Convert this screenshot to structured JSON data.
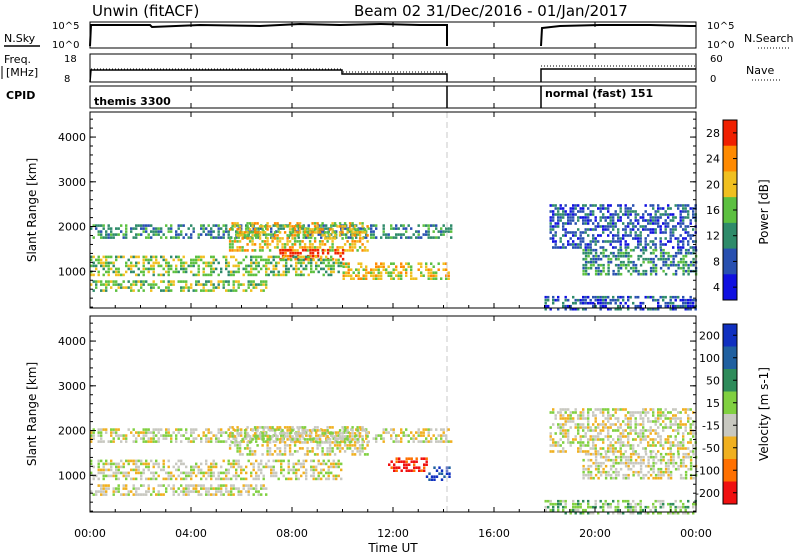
{
  "header": {
    "station": "Unwin (fitACF)",
    "beam_date": "Beam 02  31/Dec/2016 - 01/Jan/2017"
  },
  "strips": {
    "nsky_label": "N.Sky",
    "nsky_ticks": [
      "10^5",
      "10^0"
    ],
    "nsearch_label": "N.Search",
    "nsearch_ticks": [
      "10^5",
      "10^0"
    ],
    "freq_label": "Freq.",
    "freq_unit": "[MHz]",
    "freq_ticks": [
      "18",
      "8"
    ],
    "nave_label": "Nave",
    "nave_ticks": [
      "60",
      "0"
    ],
    "cpid_label": "CPID",
    "cpid_segments": [
      "themis 3300",
      "normal (fast) 151"
    ]
  },
  "x_axis": {
    "label": "Time UT",
    "ticks": [
      "00:00",
      "04:00",
      "08:00",
      "12:00",
      "16:00",
      "20:00",
      "00:00"
    ]
  },
  "chart_data": [
    {
      "type": "heatmap",
      "panel": "power",
      "ylabel": "Slant Range [km]",
      "yticks": [
        "1000",
        "2000",
        "3000",
        "4000"
      ],
      "ylim": [
        180,
        4560
      ],
      "xlim_hours": [
        0,
        24
      ],
      "colorbar_label": "Power [dB]",
      "colorbar_ticks": [
        "4",
        "8",
        "12",
        "16",
        "20",
        "24",
        "28"
      ],
      "colors": [
        "#1010e0",
        "#2850b0",
        "#2e8b6a",
        "#5cc040",
        "#f0c020",
        "#ff8a00",
        "#f02000"
      ],
      "coverage_hours": [
        [
          0,
          14.3
        ],
        [
          18,
          24
        ]
      ],
      "echo_bands": [
        {
          "t": [
            0.0,
            14.3
          ],
          "range_km": [
            1750,
            2050
          ],
          "level": 2
        },
        {
          "t": [
            5.5,
            11.0
          ],
          "range_km": [
            1450,
            2100
          ],
          "level": 4
        },
        {
          "t": [
            7.5,
            10.0
          ],
          "range_km": [
            1250,
            1500
          ],
          "level": 6
        },
        {
          "t": [
            0.0,
            10.0
          ],
          "range_km": [
            900,
            1350
          ],
          "level": 3
        },
        {
          "t": [
            0.0,
            7.0
          ],
          "range_km": [
            550,
            800
          ],
          "level": 3
        },
        {
          "t": [
            10.0,
            14.2
          ],
          "range_km": [
            850,
            1200
          ],
          "level": 4
        },
        {
          "t": [
            18.2,
            24.0
          ],
          "range_km": [
            1500,
            2500
          ],
          "level": 1
        },
        {
          "t": [
            19.5,
            24.0
          ],
          "range_km": [
            900,
            1500
          ],
          "level": 2
        },
        {
          "t": [
            18.0,
            24.0
          ],
          "range_km": [
            180,
            450
          ],
          "level": 1
        }
      ]
    },
    {
      "type": "heatmap",
      "panel": "velocity",
      "ylabel": "Slant Range [km]",
      "yticks": [
        "1000",
        "2000",
        "3000",
        "4000"
      ],
      "ylim": [
        180,
        4560
      ],
      "xlim_hours": [
        0,
        24
      ],
      "colorbar_label": "Velocity [m s-1]",
      "colorbar_ticks": [
        "200",
        "100",
        "50",
        "15",
        "-15",
        "-50",
        "-100",
        "-200"
      ],
      "colors": [
        "#1030c0",
        "#2060a0",
        "#2e8b5a",
        "#80d040",
        "#c8c8c0",
        "#f0b020",
        "#ff7000",
        "#f01010"
      ],
      "coverage_hours": [
        [
          0,
          14.3
        ],
        [
          18,
          24
        ]
      ],
      "echo_bands": [
        {
          "t": [
            0.0,
            14.3
          ],
          "range_km": [
            1750,
            2050
          ],
          "level": 4
        },
        {
          "t": [
            5.5,
            11.0
          ],
          "range_km": [
            1450,
            2100
          ],
          "level": 4
        },
        {
          "t": [
            0.0,
            10.0
          ],
          "range_km": [
            900,
            1350
          ],
          "level": 4
        },
        {
          "t": [
            0.0,
            7.0
          ],
          "range_km": [
            550,
            800
          ],
          "level": 4
        },
        {
          "t": [
            11.8,
            13.3
          ],
          "range_km": [
            1100,
            1400
          ],
          "level": 7
        },
        {
          "t": [
            13.3,
            14.2
          ],
          "range_km": [
            900,
            1200
          ],
          "level": 0
        },
        {
          "t": [
            18.2,
            24.0
          ],
          "range_km": [
            1500,
            2500
          ],
          "level": 4
        },
        {
          "t": [
            19.5,
            24.0
          ],
          "range_km": [
            900,
            1500
          ],
          "level": 4
        },
        {
          "t": [
            18.0,
            24.0
          ],
          "range_km": [
            180,
            450
          ],
          "level": 3
        }
      ]
    }
  ]
}
